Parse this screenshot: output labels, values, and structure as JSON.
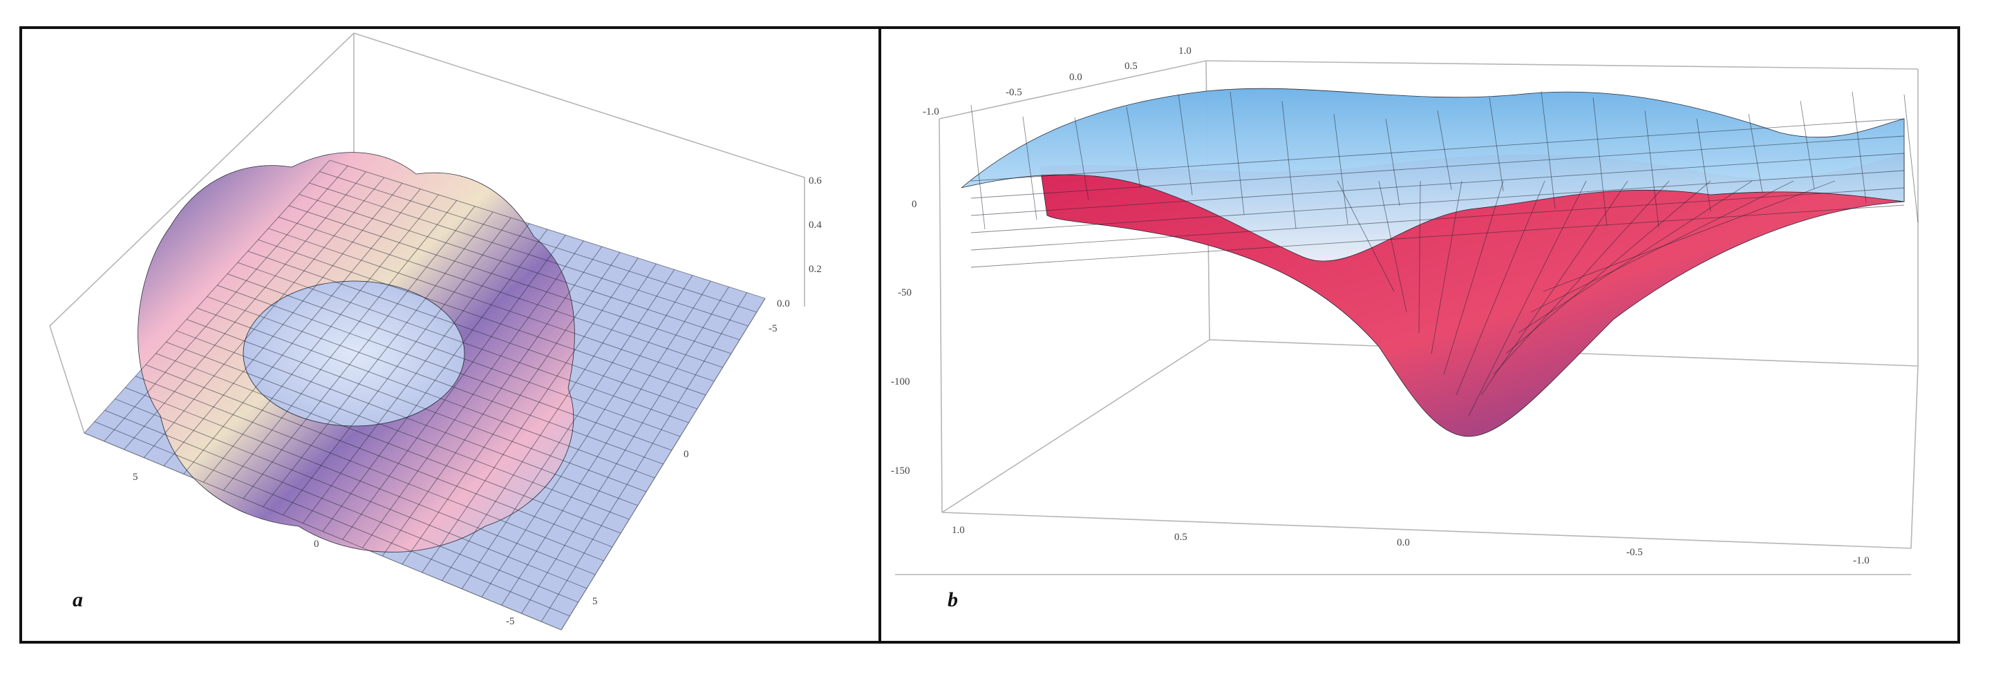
{
  "panels": [
    {
      "label": "a"
    },
    {
      "label": "b"
    }
  ],
  "colors": {
    "surface_a_low": "#b9c6ea",
    "surface_a_mid": "#f3b7cc",
    "surface_a_high": "#efe1c6",
    "surface_a_deep": "#4b4ea8",
    "surface_b_top": "#8cc6ef",
    "surface_b_bottom": "#d8285a",
    "mesh": "#1f2230",
    "frame": "#111111"
  },
  "chart_data": [
    {
      "type": "surface",
      "panel": "a",
      "title": "",
      "x_ticks": [
        "5",
        "0",
        "-5"
      ],
      "y_ticks": [
        "-5",
        "0",
        "5"
      ],
      "z_ticks": [
        "0.6",
        "0.4",
        "0.2",
        "0.0"
      ],
      "xlim": [
        -7,
        7
      ],
      "ylim": [
        -7,
        7
      ],
      "zlim": [
        0,
        0.6
      ],
      "description_of_shape": "ring of peaks around a central depression",
      "grid": false
    },
    {
      "type": "surface",
      "panel": "b",
      "title": "",
      "x_ticks": [
        "1.0",
        "0.5",
        "0.0",
        "-0.5",
        "-1.0"
      ],
      "y_ticks": [
        "-1.0",
        "-0.5",
        "0.0",
        "0.5",
        "1.0"
      ],
      "z_ticks": [
        "0",
        "-50",
        "-100",
        "-150"
      ],
      "xlim": [
        -1,
        1
      ],
      "ylim": [
        -1,
        1
      ],
      "zlim": [
        -160,
        20
      ],
      "description_of_shape": "two sheets; upper sheet wavy near 0, lower sheet funnels down to about -130",
      "grid": false
    }
  ]
}
